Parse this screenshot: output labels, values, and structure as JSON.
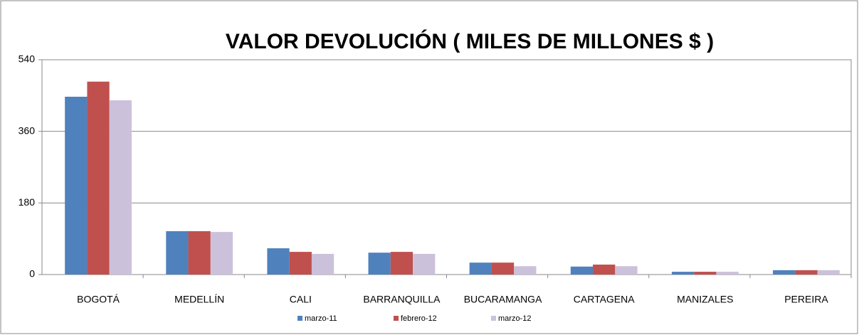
{
  "chart_data": {
    "type": "bar",
    "title": "VALOR DEVOLUCIÓN ( MILES DE MILLONES $ )",
    "categories": [
      "BOGOTÁ",
      "MEDELLÍN",
      "CALI",
      "BARRANQUILLA",
      "BUCARAMANGA",
      "CARTAGENA",
      "MANIZALES",
      "PEREIRA"
    ],
    "series": [
      {
        "name": "marzo-11",
        "color": "#4f81bd",
        "values": [
          447,
          109,
          66,
          55,
          30,
          20,
          7,
          11
        ]
      },
      {
        "name": "febrero-12",
        "color": "#c0504d",
        "values": [
          485,
          109,
          57,
          57,
          30,
          25,
          7,
          11
        ]
      },
      {
        "name": "marzo-12",
        "color": "#ccc1da",
        "values": [
          438,
          107,
          52,
          52,
          21,
          21,
          7,
          11
        ]
      }
    ],
    "ylim": [
      0,
      540
    ],
    "yticks": [
      0,
      180,
      360,
      540
    ],
    "grid": true,
    "legend": "bottom"
  }
}
